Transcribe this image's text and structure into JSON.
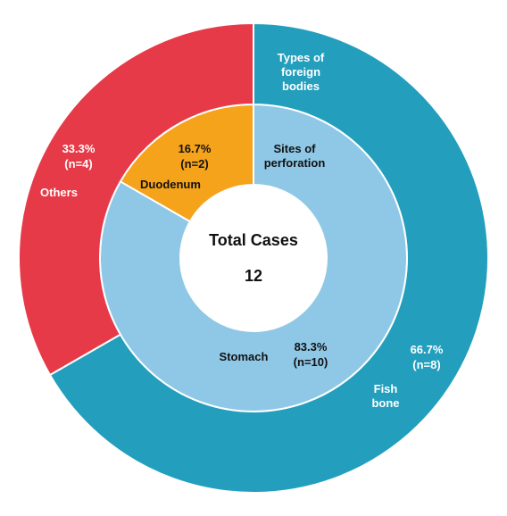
{
  "chart_data": {
    "type": "donut",
    "center_label": "Total Cases",
    "total": 12,
    "rings": [
      {
        "name": "Sites of perforation",
        "categories": [
          "Stomach",
          "Duodenum"
        ],
        "values": [
          83.3,
          16.7
        ],
        "value_labels": [
          "83.3%",
          "16.7%"
        ],
        "count_labels": [
          "(n=10)",
          "(n=2)"
        ],
        "colors": [
          "#8fc8e6",
          "#f5a31a"
        ]
      },
      {
        "name": "Types of foreign bodies",
        "categories": [
          "Fish bone",
          "Others"
        ],
        "values": [
          66.7,
          33.3
        ],
        "value_labels": [
          "66.7%",
          "33.3%"
        ],
        "count_labels": [
          "(n=8)",
          "(n=4)"
        ],
        "colors": [
          "#239fbd",
          "#e63a48"
        ]
      }
    ]
  }
}
